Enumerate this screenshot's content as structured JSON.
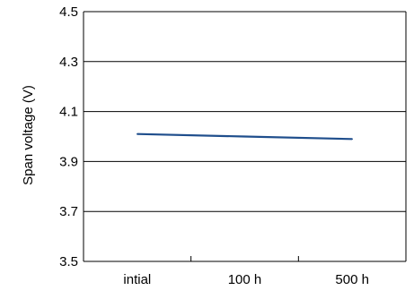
{
  "chart_data": {
    "type": "line",
    "title": "",
    "xlabel": "",
    "ylabel": "Span voltage (V)",
    "categories": [
      "intial",
      "100 h",
      "500 h"
    ],
    "series": [
      {
        "values": [
          4.01,
          4.0,
          3.99
        ],
        "color": "#1F4E8C"
      }
    ],
    "ylim": [
      3.5,
      4.5
    ],
    "yticks": [
      3.5,
      3.7,
      3.9,
      4.1,
      4.3,
      4.5
    ],
    "ytick_labels": [
      "3.5",
      "3.7",
      "3.9",
      "4.1",
      "4.3",
      "4.5"
    ],
    "grid": "horizontal",
    "legend": "none"
  }
}
